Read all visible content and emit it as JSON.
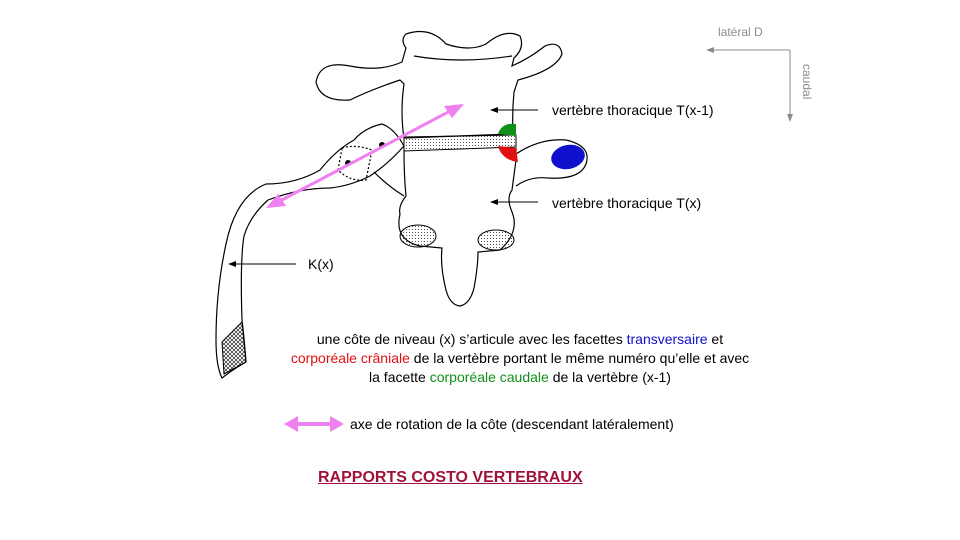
{
  "orientation": {
    "lateral_label": "latéral D",
    "caudal_label": "caudal"
  },
  "labels": {
    "upper_vertebra": "vertèbre thoracique T(x-1)",
    "lower_vertebra": "vertèbre thoracique T(x)",
    "rib": "K(x)"
  },
  "description": {
    "line1_a": "une côte de niveau  (x)  s’articule avec les facettes ",
    "line1_blue": "transversaire",
    "line1_b": "  et",
    "line2_red": "corporéale crâniale",
    "line2_b": " de la vertèbre portant le même numéro  qu’elle et avec",
    "line3_a": "la facette ",
    "line3_green": "corporéale caudale",
    "line3_b": " de la vertèbre (x-1)"
  },
  "legend": {
    "axis_text": "axe de rotation de la côte (descendant  latéralement)"
  },
  "title": "RAPPORTS COSTO VERTEBRAUX",
  "colors": {
    "transverse_facet": "#1010cc",
    "cranial_facet": "#e01010",
    "caudal_facet": "#10901a",
    "axis_arrow": "#f080f0",
    "title": "#a0123a",
    "orientation": "#8c8c8c"
  }
}
